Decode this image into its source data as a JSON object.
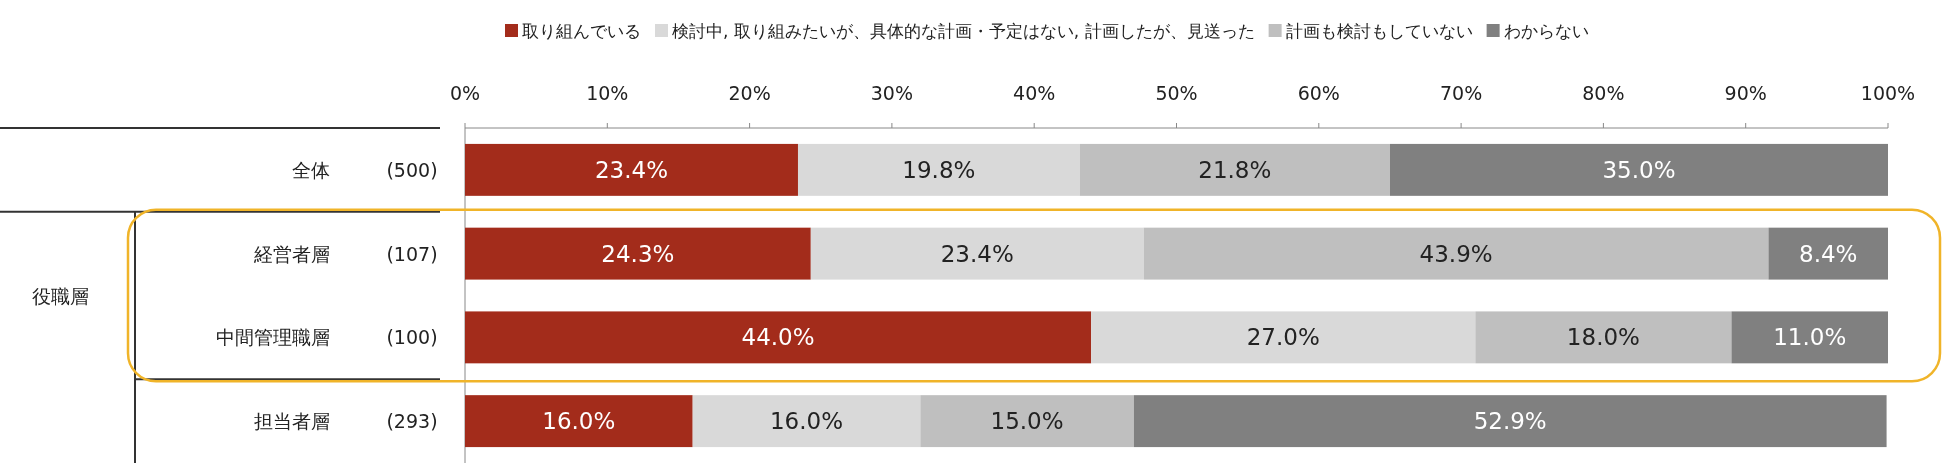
{
  "chart_data": {
    "type": "bar",
    "orientation": "horizontal",
    "stacked": true,
    "legend": "top",
    "categories": [
      "全体",
      "経営者層",
      "中間管理職層",
      "担当者層"
    ],
    "series": [
      {
        "name": "取り組んでいる",
        "color": "#a32c1b",
        "values": [
          23.4,
          24.3,
          44.0,
          16.0
        ],
        "value_labels": [
          "23.4%",
          "24.3%",
          "44.0%",
          "16.0%"
        ]
      },
      {
        "name": "検討中, 取り組みたいが、具体的な計画・予定はない, 計画したが、見送った",
        "color": "#d9d9d9",
        "values": [
          19.8,
          23.4,
          27.0,
          16.0
        ],
        "value_labels": [
          "19.8%",
          "23.4%",
          "27.0%",
          "16.0%"
        ]
      },
      {
        "name": "計画も検討もしていない",
        "color": "#bfbfbf",
        "values": [
          21.8,
          43.9,
          18.0,
          15.0
        ],
        "value_labels": [
          "21.8%",
          "43.9%",
          "18.0%",
          "15.0%"
        ]
      },
      {
        "name": "わからない",
        "color": "#808080",
        "values": [
          35.0,
          8.4,
          11.0,
          52.9
        ],
        "value_labels": [
          "35.0%",
          "8.4%",
          "11.0%",
          "52.9%"
        ]
      }
    ],
    "xlim": [
      0,
      100
    ],
    "xticks": [
      {
        "value": 0,
        "label": "0%"
      },
      {
        "value": 10,
        "label": "10%"
      },
      {
        "value": 20,
        "label": "20%"
      },
      {
        "value": 30,
        "label": "30%"
      },
      {
        "value": 40,
        "label": "40%"
      },
      {
        "value": 50,
        "label": "50%"
      },
      {
        "value": 60,
        "label": "60%"
      },
      {
        "value": 70,
        "label": "70%"
      },
      {
        "value": 80,
        "label": "80%"
      },
      {
        "value": 90,
        "label": "90%"
      },
      {
        "value": 100,
        "label": "100%"
      }
    ],
    "annotations": [
      "(500)",
      "(107)",
      "(100)",
      "(293)",
      "役職層"
    ]
  }
}
